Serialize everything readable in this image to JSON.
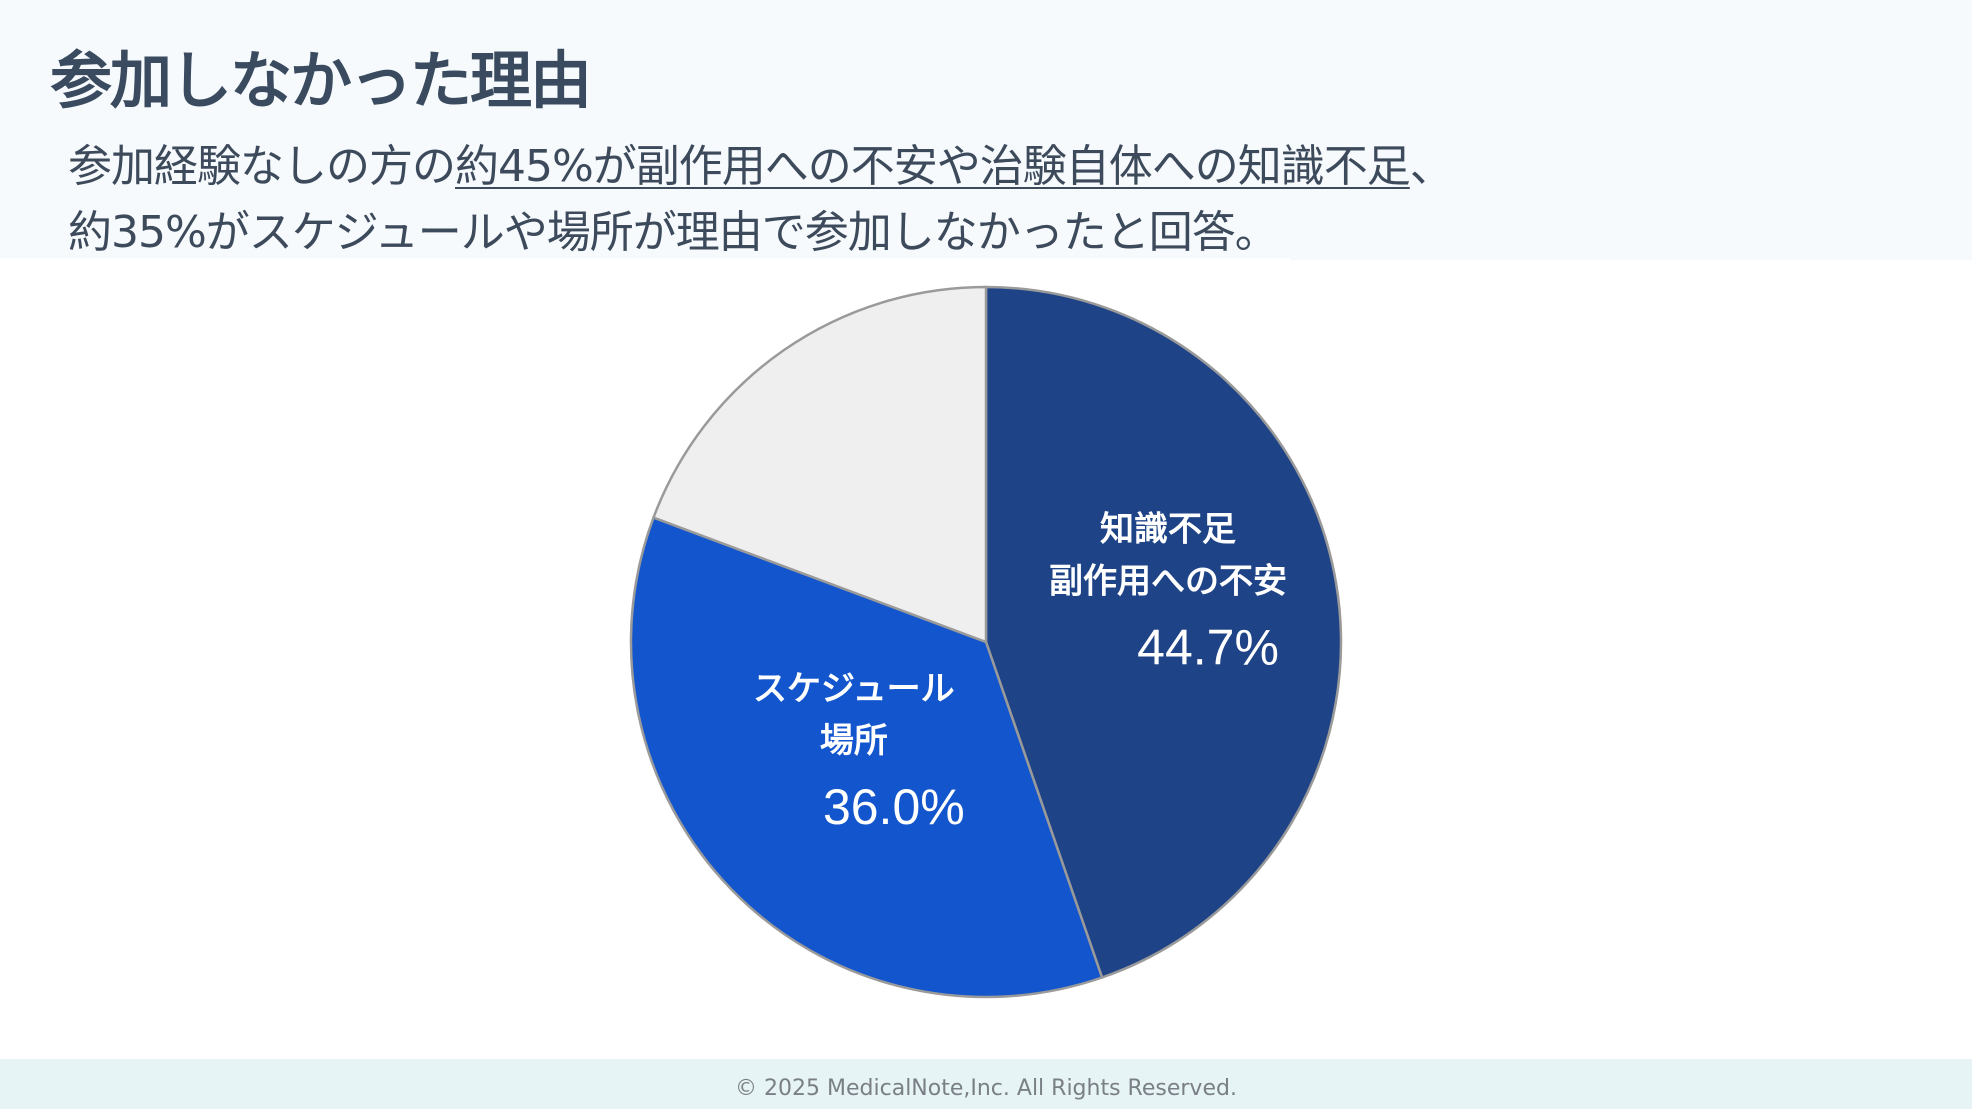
{
  "slide": {
    "title": "参加しなかった理由",
    "subtitle_line1_pre": "参加経験なしの方の",
    "subtitle_line1_highlight": "約45%が副作用への不安や治験自体への知識不足",
    "subtitle_line1_post": "、",
    "subtitle_line2": "約35%がスケジュールや場所が理由で参加しなかったと回答。"
  },
  "chart_data": {
    "type": "pie",
    "title": "",
    "slices": [
      {
        "label_lines": [
          "知識不足",
          "副作用への不安"
        ],
        "value": 44.7,
        "value_label": "44.7%",
        "color": "#1e4387"
      },
      {
        "label_lines": [
          "スケジュール",
          "場所"
        ],
        "value": 36.0,
        "value_label": "36.0%",
        "color": "#1255cc"
      },
      {
        "label_lines": [],
        "value": 19.3,
        "value_label": "",
        "color": "#efefef"
      }
    ],
    "start_angle": "12 o'clock",
    "direction": "clockwise",
    "legend": "none"
  },
  "footer": {
    "copyright": "© 2025 MedicalNote,Inc. All Rights Reserved."
  },
  "colors": {
    "title_text": "#3a4a5f",
    "header_background": "#f6fafc",
    "footer_background": "#e6f4f5"
  }
}
